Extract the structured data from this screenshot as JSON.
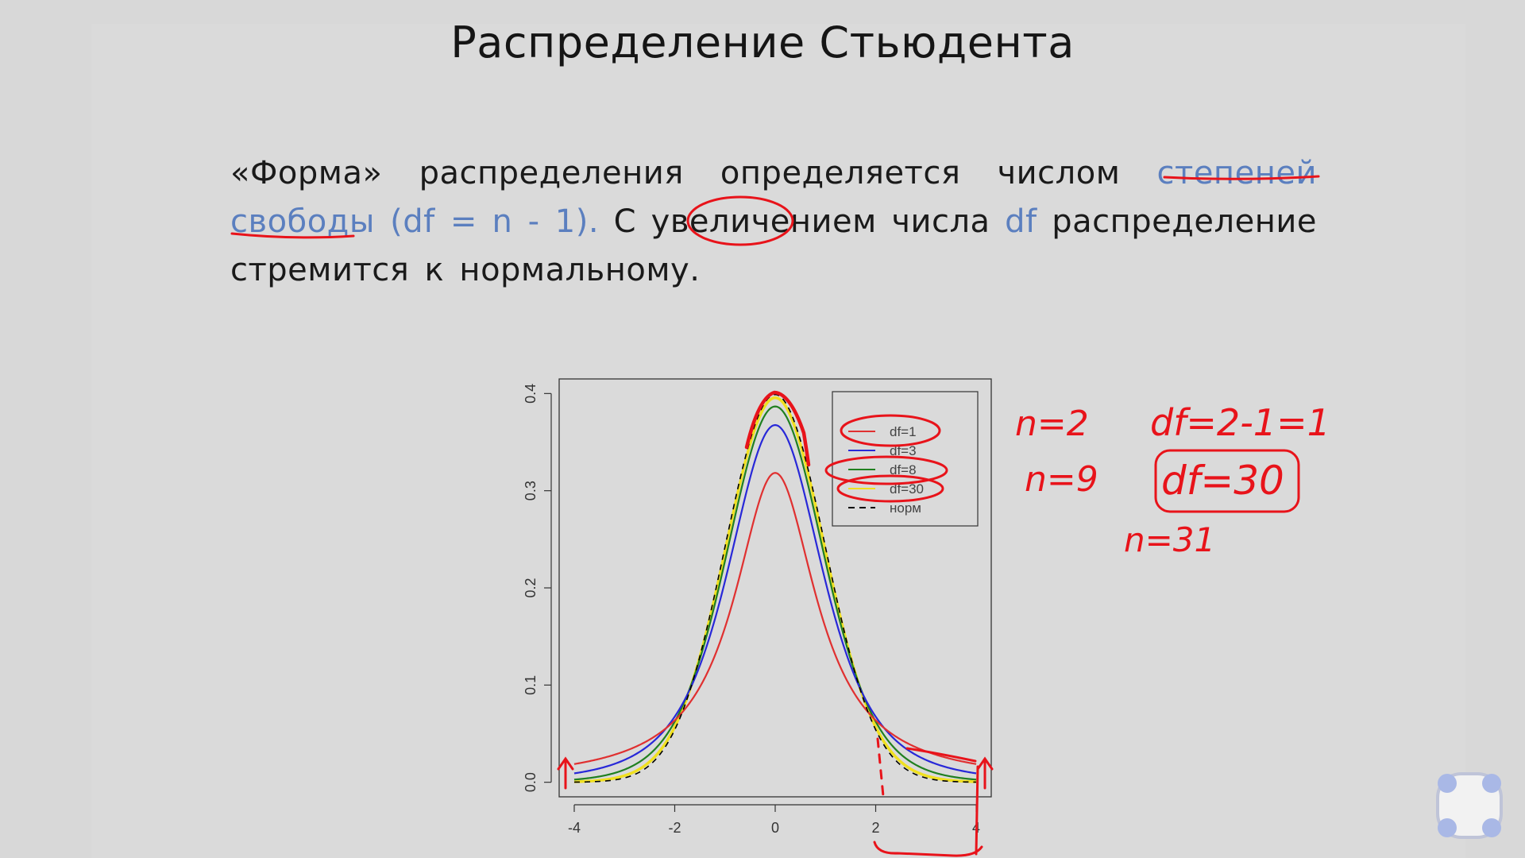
{
  "slide": {
    "title": "Распределение Стьюдента",
    "paragraph": {
      "line1": [
        "«Форма»",
        "распределения",
        "определяется",
        "числом",
        "степеней"
      ],
      "line2": [
        "свободы (df =",
        "n - 1).",
        "С",
        "увеличением",
        "числа",
        "df",
        "распределение"
      ],
      "line3": "стремится к нормальному."
    }
  },
  "chart_data": {
    "type": "line",
    "xlim": [
      -4.3,
      4.3
    ],
    "ylim": [
      -0.015,
      0.415
    ],
    "x_ticks": [
      "-4",
      "-2",
      "0",
      "2",
      "4"
    ],
    "y_ticks": [
      "0.0",
      "0.1",
      "0.2",
      "0.3",
      "0.4"
    ],
    "legend_position": "top-right",
    "series": [
      {
        "name": "df=1",
        "color": "#e03030",
        "df": 1
      },
      {
        "name": "df=3",
        "color": "#2828d8",
        "df": 3
      },
      {
        "name": "df=8",
        "color": "#208020",
        "df": 8
      },
      {
        "name": "df=30",
        "color": "#f0e020",
        "df": 30
      },
      {
        "name": "норм",
        "color": "#000000",
        "df": "normal",
        "dashed": true
      }
    ]
  },
  "annotations": {
    "n1": "n=2",
    "df1": "df=2-1=1",
    "n2": "n=9",
    "df2": "df=30",
    "n3": "n=31"
  },
  "colors": {
    "ink": "#e8131a",
    "accent_blue": "#5b7fbf"
  },
  "logo_icon": "four-dots-logo"
}
